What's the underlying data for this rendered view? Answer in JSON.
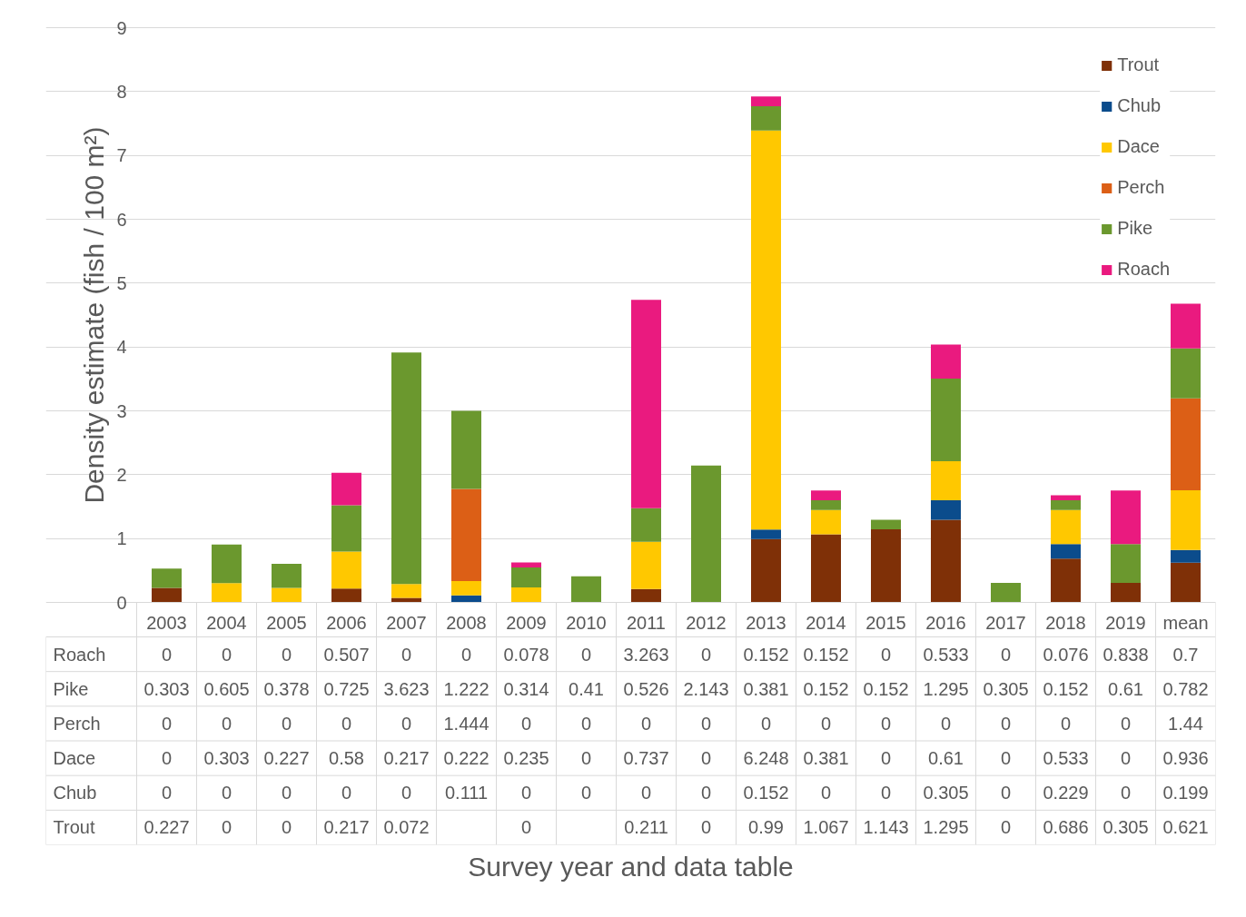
{
  "chart_data": {
    "type": "bar",
    "stacked": true,
    "data_labels": true,
    "annotations": [
      "Survey year and data table"
    ],
    "ylabel": "Density estimate (fish / 100 m²)",
    "categories": [
      "2003",
      "2004",
      "2005",
      "2006",
      "2007",
      "2008",
      "2009",
      "2010",
      "2011",
      "2012",
      "2013",
      "2014",
      "2015",
      "2016",
      "2017",
      "2018",
      "2019",
      "mean"
    ],
    "series": [
      {
        "name": "Trout",
        "color": "#7f3007",
        "values": [
          0.227,
          0,
          0,
          0.217,
          0.072,
          null,
          0,
          null,
          0.211,
          0,
          0.99,
          1.067,
          1.143,
          1.295,
          0,
          0.686,
          0.305,
          0.621
        ]
      },
      {
        "name": "Chub",
        "color": "#0b4c8c",
        "values": [
          0,
          0,
          0,
          0,
          0,
          0.111,
          0,
          0,
          0,
          0,
          0.152,
          0,
          0,
          0.305,
          0,
          0.229,
          0,
          0.199
        ]
      },
      {
        "name": "Dace",
        "color": "#ffc800",
        "values": [
          0,
          0.303,
          0.227,
          0.58,
          0.217,
          0.222,
          0.235,
          0,
          0.737,
          0,
          6.248,
          0.381,
          0,
          0.61,
          0,
          0.533,
          0,
          0.936
        ]
      },
      {
        "name": "Perch",
        "color": "#dc5f16",
        "values": [
          0,
          0,
          0,
          0,
          0,
          1.444,
          0,
          0,
          0,
          0,
          0,
          0,
          0,
          0,
          0,
          0,
          0,
          1.44
        ]
      },
      {
        "name": "Pike",
        "color": "#6b982e",
        "values": [
          0.303,
          0.605,
          0.378,
          0.725,
          3.623,
          1.222,
          0.314,
          0.41,
          0.526,
          2.143,
          0.381,
          0.152,
          0.152,
          1.295,
          0.305,
          0.152,
          0.61,
          0.782
        ]
      },
      {
        "name": "Roach",
        "color": "#ea1a7f",
        "values": [
          0,
          0,
          0,
          0.507,
          0,
          0,
          0.078,
          0,
          3.263,
          0,
          0.152,
          0.152,
          0,
          0.533,
          0,
          0.076,
          0.838,
          0.7
        ]
      }
    ],
    "ylim": [
      0,
      9
    ],
    "yticks": [
      0,
      1,
      2,
      3,
      4,
      5,
      6,
      7,
      8,
      9
    ],
    "grid": "y",
    "legend": "top right"
  }
}
